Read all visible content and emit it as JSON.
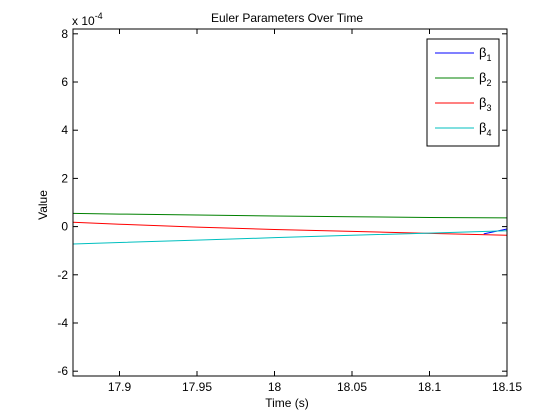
{
  "chart_data": {
    "type": "line",
    "title": "Euler Parameters Over Time",
    "xlabel": "Time (s)",
    "ylabel": "Value",
    "y_multiplier_label": "x 10",
    "y_multiplier_exponent": "-4",
    "xlim": [
      17.87,
      18.15
    ],
    "ylim": [
      -6.2,
      8.2
    ],
    "x_ticks": [
      17.9,
      17.95,
      18,
      18.05,
      18.1,
      18.15
    ],
    "x_tick_labels": [
      "17.9",
      "17.95",
      "18",
      "18.05",
      "18.1",
      "18.15"
    ],
    "y_ticks": [
      -6,
      -4,
      -2,
      0,
      2,
      4,
      6,
      8
    ],
    "y_tick_labels": [
      "-6",
      "-4",
      "-2",
      "0",
      "2",
      "4",
      "6",
      "8"
    ],
    "grid": false,
    "legend_position": "top-right",
    "series": [
      {
        "name": "β1",
        "base": "β",
        "sub": "1",
        "color": "#0000ff",
        "x": [
          18.135,
          18.15
        ],
        "y": [
          -0.3,
          -0.1
        ]
      },
      {
        "name": "β2",
        "base": "β",
        "sub": "2",
        "color": "#008000",
        "x": [
          17.87,
          17.9,
          17.95,
          18,
          18.05,
          18.1,
          18.15
        ],
        "y": [
          0.55,
          0.52,
          0.48,
          0.44,
          0.41,
          0.38,
          0.36
        ]
      },
      {
        "name": "β3",
        "base": "β",
        "sub": "3",
        "color": "#ff0000",
        "x": [
          17.87,
          17.9,
          17.95,
          18,
          18.05,
          18.1,
          18.15
        ],
        "y": [
          0.18,
          0.1,
          -0.02,
          -0.12,
          -0.2,
          -0.28,
          -0.36
        ]
      },
      {
        "name": "β4",
        "base": "β",
        "sub": "4",
        "color": "#00bfbf",
        "x": [
          17.87,
          17.9,
          17.95,
          18,
          18.05,
          18.1,
          18.15
        ],
        "y": [
          -0.72,
          -0.66,
          -0.56,
          -0.46,
          -0.36,
          -0.27,
          -0.17
        ]
      }
    ]
  }
}
